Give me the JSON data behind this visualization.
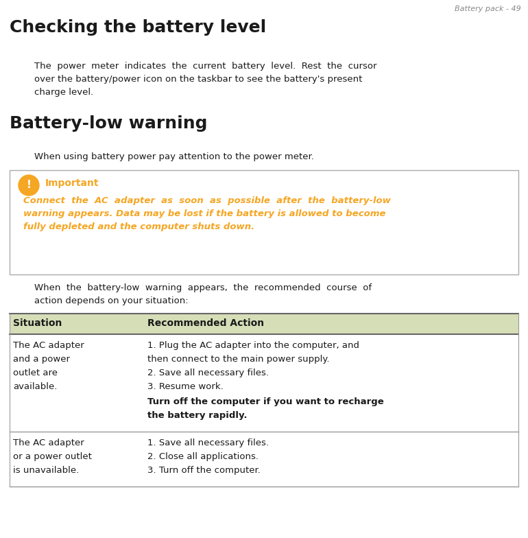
{
  "page_header": "Battery pack - 49",
  "title1": "Checking the battery level",
  "para1_lines": [
    "The  power  meter  indicates  the  current  battery  level.  Rest  the  cursor",
    "over the battery/power icon on the taskbar to see the battery's present",
    "charge level."
  ],
  "title2": "Battery-low warning",
  "para2": "When using battery power pay attention to the power meter.",
  "important_label": "Important",
  "important_text_lines": [
    "Connect  the  AC  adapter  as  soon  as  possible  after  the  battery-low",
    "warning appears. Data may be lost if the battery is allowed to become",
    "fully depleted and the computer shuts down."
  ],
  "para3_lines": [
    "When  the  battery-low  warning  appears,  the  recommended  course  of",
    "action depends on your situation:"
  ],
  "table_header_col1": "Situation",
  "table_header_col2": "Recommended Action",
  "table_header_bg": "#d6deb8",
  "table_row1_col1_lines": [
    "The AC adapter",
    "and a power",
    "outlet are",
    "available."
  ],
  "table_row1_col2_normal_lines": [
    "1. Plug the AC adapter into the computer, and",
    "then connect to the main power supply.",
    "2. Save all necessary files.",
    "3. Resume work."
  ],
  "table_row1_col2_bold_lines": [
    "Turn off the computer if you want to recharge",
    "the battery rapidly."
  ],
  "table_row2_col1_lines": [
    "The AC adapter",
    "or a power outlet",
    "is unavailable."
  ],
  "table_row2_col2_lines": [
    "1. Save all necessary files.",
    "2. Close all applications.",
    "3. Turn off the computer."
  ],
  "orange_color": "#F5A623",
  "text_color": "#1a1a1a",
  "bg_color": "#ffffff",
  "header_gray": "#888888",
  "table_border_dark": "#666666",
  "table_border_light": "#999999"
}
